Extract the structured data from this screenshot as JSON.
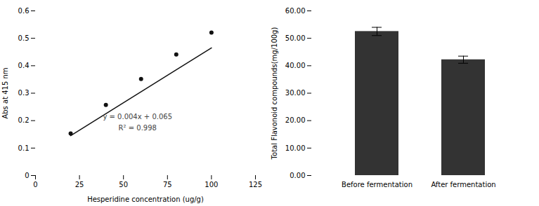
{
  "chart_data": [
    {
      "type": "scatter",
      "xlabel": "Hesperidine concentration (ug/g)",
      "ylabel": "Abs at 415 nm",
      "series": [
        {
          "type": "scatter",
          "marker": "circle",
          "color": "#111111",
          "x": [
            20,
            40,
            60,
            80,
            100
          ],
          "values": [
            0.153,
            0.257,
            0.352,
            0.441,
            0.521
          ]
        },
        {
          "type": "line",
          "line_style": "solid",
          "color": "#111111",
          "x": [
            20,
            100
          ],
          "values": [
            0.145,
            0.465
          ]
        }
      ],
      "xlim": [
        0,
        125
      ],
      "xticks": [
        0,
        25,
        50,
        75,
        100,
        125
      ],
      "ylim": [
        0,
        0.6
      ],
      "yticks": [
        0,
        0.1,
        0.2,
        0.3,
        0.4,
        0.5,
        0.6
      ],
      "annotations": [
        {
          "text": "y = 0.004x + 0.065",
          "x": 58,
          "y": 0.205,
          "color": "#444444"
        },
        {
          "text": "R² = 0.998",
          "x": 58,
          "y": 0.165,
          "color": "#444444"
        }
      ]
    },
    {
      "type": "bar",
      "ylabel": "Total Flavonoid compounds(mg/100g)",
      "categories": [
        "Before fermentation",
        "After fermentation"
      ],
      "values": [
        52.5,
        42.2
      ],
      "errors": [
        1.5,
        1.3
      ],
      "color": "#333333",
      "ylim": [
        0,
        60
      ],
      "yticks": [
        {
          "value": 0,
          "label": "0.00"
        },
        {
          "value": 10,
          "label": "10.00"
        },
        {
          "value": 20,
          "label": "20.00"
        },
        {
          "value": 30,
          "label": "30.00"
        },
        {
          "value": 40,
          "label": "40.00"
        },
        {
          "value": 50,
          "label": "50.00"
        },
        {
          "value": 60,
          "label": "60.00"
        }
      ]
    }
  ]
}
